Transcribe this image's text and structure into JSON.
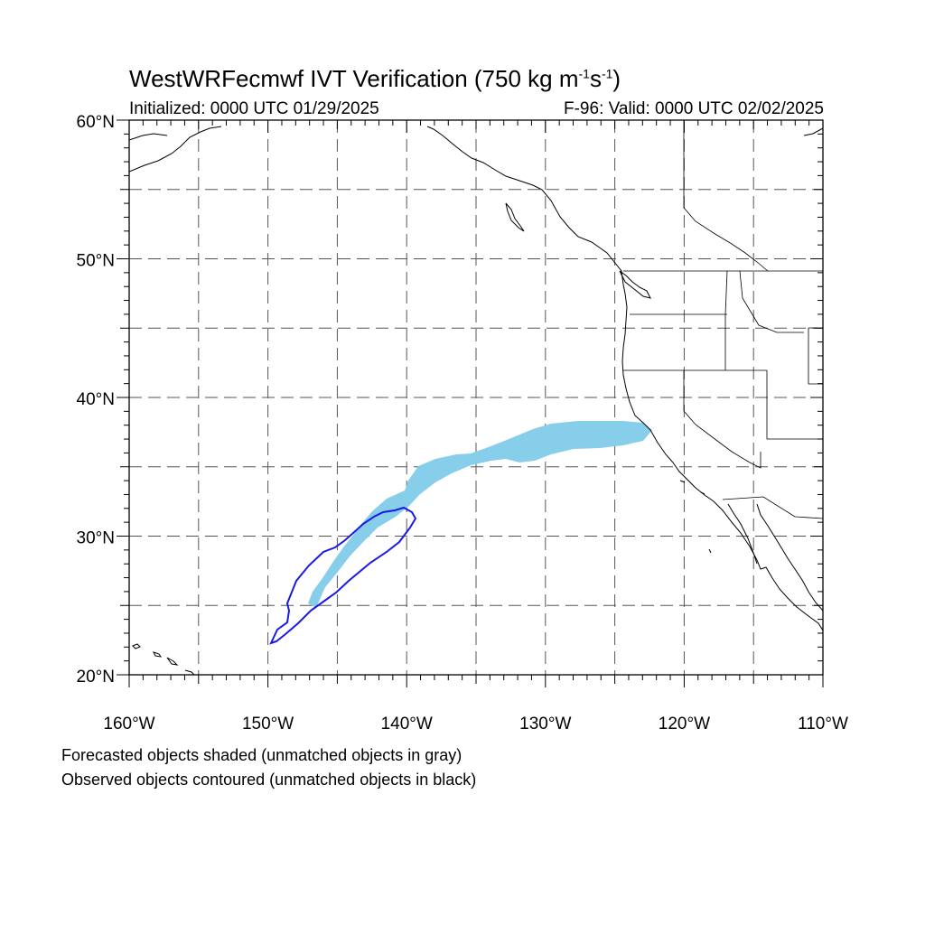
{
  "title": {
    "prefix": "WestWRFecmwf IVT Verification (750 kg m",
    "sup1": "-1",
    "mid": "s",
    "sup2": "-1",
    "suffix": ")"
  },
  "initialized": "Initialized: 0000 UTC 01/29/2025",
  "valid": "F-96: Valid: 0000 UTC 02/02/2025",
  "map": {
    "lon_range": [
      -160,
      -110
    ],
    "lat_range": [
      20,
      60
    ],
    "lon_labels": [
      "160°W",
      "150°W",
      "140°W",
      "130°W",
      "120°W",
      "110°W"
    ],
    "lat_labels": [
      "20°N",
      "30°N",
      "40°N",
      "50°N",
      "60°N"
    ],
    "grid_interval_deg": 5,
    "grid": true,
    "forecast_color": "#87ceeb",
    "observed_color": "#1a1ae6"
  },
  "footnotes": [
    "Forecasted objects shaded (unmatched objects in gray)",
    "Observed objects contoured (unmatched objects in black)"
  ]
}
